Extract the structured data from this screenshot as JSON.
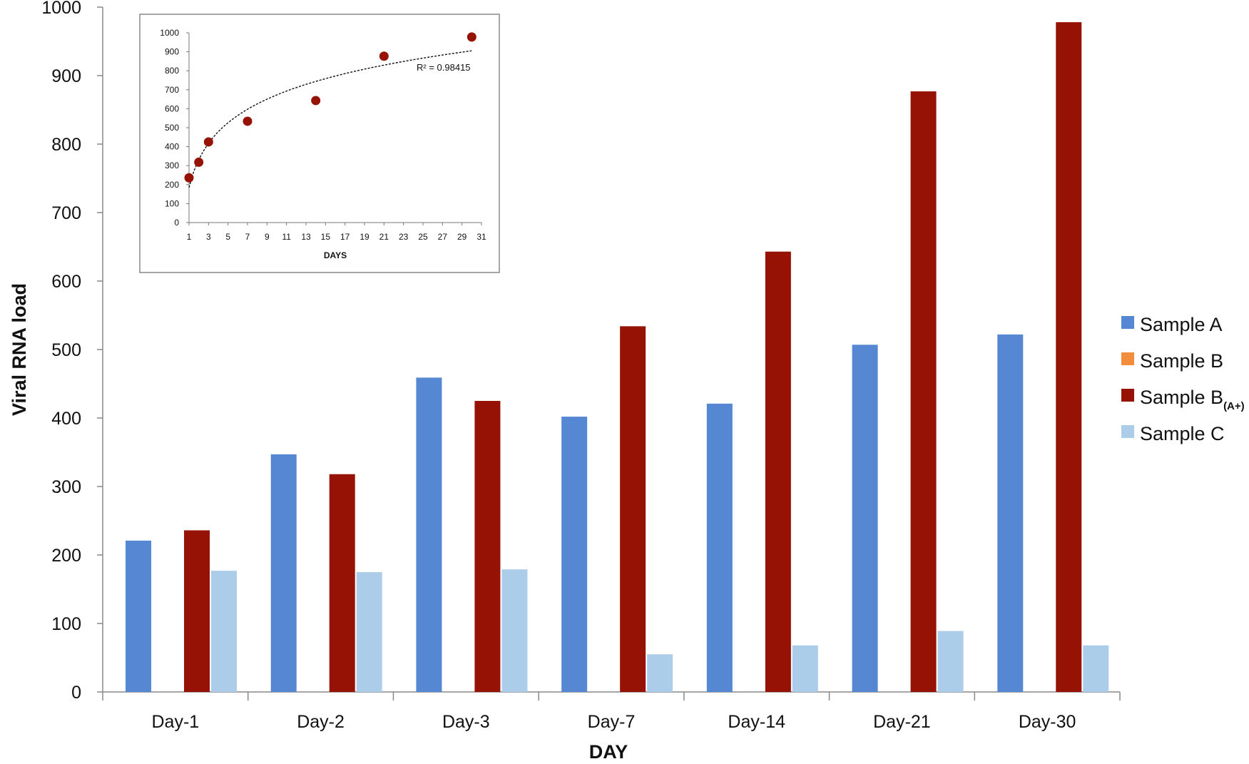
{
  "chart_data": [
    {
      "type": "bar",
      "xlabel": "DAY",
      "ylabel": "Viral RNA load",
      "ylim": [
        0,
        1000
      ],
      "yticks": [
        0,
        100,
        200,
        300,
        400,
        500,
        600,
        700,
        800,
        900,
        1000
      ],
      "categories": [
        "Day-1",
        "Day-2",
        "Day-3",
        "Day-7",
        "Day-14",
        "Day-21",
        "Day-30"
      ],
      "grid": false,
      "legend_position": "right",
      "series": [
        {
          "name": "Sample A",
          "legend_main": "Sample A",
          "legend_sub": "",
          "color": "#5687d3",
          "values": [
            221,
            347,
            459,
            402,
            421,
            507,
            522
          ]
        },
        {
          "name": "Sample B",
          "legend_main": "Sample B",
          "legend_sub": "",
          "color": "#f28e3b",
          "values": [
            null,
            null,
            null,
            null,
            null,
            null,
            null
          ]
        },
        {
          "name": "Sample B(A+)",
          "legend_main": "Sample B",
          "legend_sub": "(A+)",
          "color": "#961205",
          "values": [
            236,
            318,
            425,
            534,
            643,
            877,
            978
          ]
        },
        {
          "name": "Sample C",
          "legend_main": "Sample C",
          "legend_sub": "",
          "color": "#abcdea",
          "values": [
            177,
            175,
            179,
            55,
            68,
            89,
            68
          ]
        }
      ]
    },
    {
      "type": "scatter",
      "xlabel": "DAYS",
      "ylabel": "",
      "xlim": [
        1,
        31
      ],
      "ylim": [
        0,
        1000
      ],
      "xticks": [
        1,
        3,
        5,
        7,
        9,
        11,
        13,
        15,
        17,
        19,
        21,
        23,
        25,
        27,
        29,
        31
      ],
      "yticks": [
        0,
        100,
        200,
        300,
        400,
        500,
        600,
        700,
        800,
        900,
        1000
      ],
      "annotation": "R² = 0.98415",
      "trendline": "logarithmic",
      "point_color": "#961205",
      "points": [
        {
          "x": 1,
          "y": 236
        },
        {
          "x": 2,
          "y": 318
        },
        {
          "x": 3,
          "y": 425
        },
        {
          "x": 7,
          "y": 534
        },
        {
          "x": 14,
          "y": 643
        },
        {
          "x": 21,
          "y": 877
        },
        {
          "x": 30,
          "y": 978
        }
      ]
    }
  ]
}
